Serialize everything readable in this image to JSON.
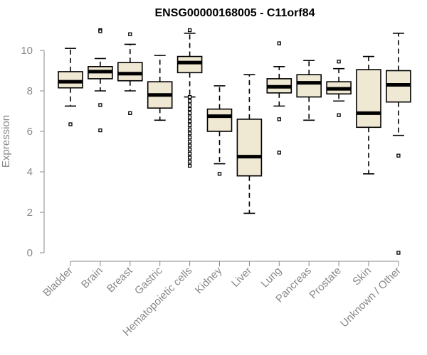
{
  "chart_data": {
    "type": "boxplot",
    "title": "ENSG00000168005 - C11orf84",
    "xlabel": "",
    "ylabel": "Expression",
    "ylim": [
      0,
      11
    ],
    "yticks": [
      0,
      2,
      4,
      6,
      8,
      10
    ],
    "box_fill": "#efe8d2",
    "categories": [
      "Bladder",
      "Brain",
      "Breast",
      "Gastric",
      "Hematopoietic cells",
      "Kidney",
      "Liver",
      "Lung",
      "Pancreas",
      "Prostate",
      "Skin",
      "Unknown / Other"
    ],
    "boxes": [
      {
        "name": "Bladder",
        "whisker_low": 7.25,
        "q1": 8.15,
        "median": 8.45,
        "q3": 8.95,
        "whisker_high": 10.1,
        "outliers": [
          6.35
        ]
      },
      {
        "name": "Brain",
        "whisker_low": 8.0,
        "q1": 8.6,
        "median": 8.95,
        "q3": 9.2,
        "whisker_high": 9.6,
        "outliers": [
          11.0,
          10.95,
          7.3,
          6.05
        ]
      },
      {
        "name": "Breast",
        "whisker_low": 8.0,
        "q1": 8.5,
        "median": 8.85,
        "q3": 9.4,
        "whisker_high": 10.3,
        "outliers": [
          10.8,
          6.9
        ]
      },
      {
        "name": "Gastric",
        "whisker_low": 6.55,
        "q1": 7.15,
        "median": 7.8,
        "q3": 8.45,
        "whisker_high": 9.75,
        "outliers": []
      },
      {
        "name": "Hematopoietic cells",
        "whisker_low": 7.7,
        "q1": 8.9,
        "median": 9.4,
        "q3": 9.7,
        "whisker_high": 10.85,
        "outliers": [
          11.0,
          7.7,
          7.5,
          7.3,
          7.1,
          6.9,
          6.7,
          6.5,
          6.3,
          6.1,
          5.9,
          5.7,
          5.5,
          5.3,
          5.1,
          4.9,
          4.7,
          4.5,
          4.3
        ]
      },
      {
        "name": "Kidney",
        "whisker_low": 4.4,
        "q1": 6.0,
        "median": 6.75,
        "q3": 7.1,
        "whisker_high": 8.25,
        "outliers": [
          3.9
        ]
      },
      {
        "name": "Liver",
        "whisker_low": 1.95,
        "q1": 3.8,
        "median": 4.75,
        "q3": 6.6,
        "whisker_high": 8.8,
        "outliers": []
      },
      {
        "name": "Lung",
        "whisker_low": 7.25,
        "q1": 7.9,
        "median": 8.2,
        "q3": 8.6,
        "whisker_high": 9.2,
        "outliers": [
          10.35,
          6.6,
          4.95
        ]
      },
      {
        "name": "Pancreas",
        "whisker_low": 6.55,
        "q1": 7.7,
        "median": 8.4,
        "q3": 8.8,
        "whisker_high": 9.5,
        "outliers": []
      },
      {
        "name": "Prostate",
        "whisker_low": 7.5,
        "q1": 7.85,
        "median": 8.1,
        "q3": 8.45,
        "whisker_high": 9.1,
        "outliers": [
          9.45,
          6.8
        ]
      },
      {
        "name": "Skin",
        "whisker_low": 3.9,
        "q1": 6.2,
        "median": 6.9,
        "q3": 9.05,
        "whisker_high": 9.7,
        "outliers": []
      },
      {
        "name": "Unknown / Other",
        "whisker_low": 5.8,
        "q1": 7.45,
        "median": 8.3,
        "q3": 9.0,
        "whisker_high": 10.85,
        "outliers": [
          4.8,
          0.0
        ]
      }
    ]
  }
}
